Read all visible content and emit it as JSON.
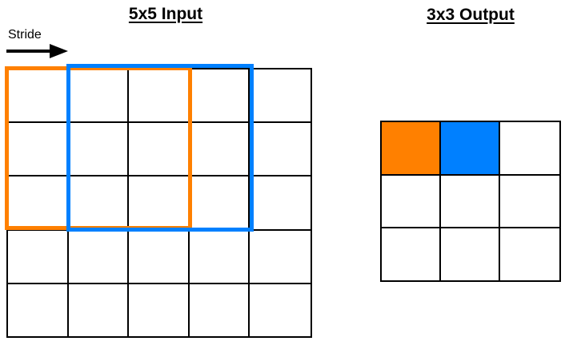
{
  "page": {
    "background": "#ffffff",
    "line_color": "#000000"
  },
  "input_panel": {
    "title": "5x5 Input",
    "stride": {
      "label": "Stride",
      "direction": "right",
      "arrow_color": "#000000"
    },
    "grid": {
      "rows": 5,
      "cols": 5
    },
    "windows": [
      {
        "id": "orange-window",
        "color": "#FF8000",
        "rows": "1-3",
        "cols": "1-3",
        "size": "3x3"
      },
      {
        "id": "blue-window",
        "color": "#0080FF",
        "rows": "1-3",
        "cols": "2-4",
        "size": "3x3"
      }
    ]
  },
  "output_panel": {
    "title": "3x3 Output",
    "grid": {
      "rows": 3,
      "cols": 3
    },
    "filled_cells": [
      {
        "row": 0,
        "col": 0,
        "color": "#FF8000"
      },
      {
        "row": 0,
        "col": 1,
        "color": "#0080FF"
      }
    ]
  }
}
